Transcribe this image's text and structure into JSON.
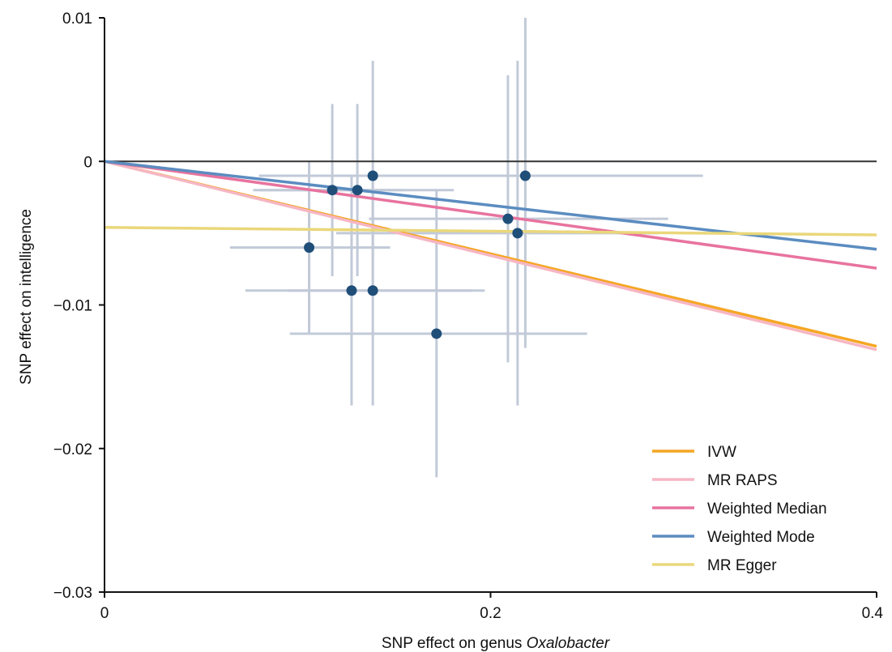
{
  "chart_data": {
    "type": "scatter",
    "xlabel": "SNP effect on genus ",
    "xlabel_italic": "Oxalobacter",
    "ylabel": "SNP effect on intelligence",
    "xlim": [
      0,
      0.4
    ],
    "ylim": [
      -0.03,
      0.01
    ],
    "x_ticks": [
      0,
      0.2,
      0.4
    ],
    "x_tick_labels": [
      "0",
      "0.2",
      "0.4"
    ],
    "y_ticks": [
      0.01,
      0,
      -0.01,
      -0.02,
      -0.03
    ],
    "y_tick_labels": [
      "0.01",
      "0",
      "−0.01",
      "−0.02",
      "−0.03"
    ],
    "grid": false,
    "legend_position": "bottom-right",
    "colors": {
      "points": "#1f4e79",
      "error_bars": "#c2cad8",
      "zero_line": "#333333",
      "axes": "#111111"
    },
    "points": [
      {
        "x": 0.106,
        "y": -0.006,
        "x_lo": 0.065,
        "x_hi": 0.148,
        "y_lo": -0.012,
        "y_hi": 0.0
      },
      {
        "x": 0.118,
        "y": -0.002,
        "x_lo": 0.08,
        "x_hi": 0.155,
        "y_lo": -0.008,
        "y_hi": 0.004
      },
      {
        "x": 0.128,
        "y": -0.009,
        "x_lo": 0.073,
        "x_hi": 0.197,
        "y_lo": -0.017,
        "y_hi": -0.001
      },
      {
        "x": 0.131,
        "y": -0.002,
        "x_lo": 0.077,
        "x_hi": 0.181,
        "y_lo": -0.008,
        "y_hi": 0.004
      },
      {
        "x": 0.139,
        "y": -0.001,
        "x_lo": 0.08,
        "x_hi": 0.207,
        "y_lo": -0.009,
        "y_hi": 0.007
      },
      {
        "x": 0.139,
        "y": -0.009,
        "x_lo": 0.095,
        "x_hi": 0.19,
        "y_lo": -0.017,
        "y_hi": -0.001
      },
      {
        "x": 0.172,
        "y": -0.012,
        "x_lo": 0.096,
        "x_hi": 0.25,
        "y_lo": -0.022,
        "y_hi": -0.002
      },
      {
        "x": 0.209,
        "y": -0.004,
        "x_lo": 0.137,
        "x_hi": 0.292,
        "y_lo": -0.014,
        "y_hi": 0.006
      },
      {
        "x": 0.214,
        "y": -0.005,
        "x_lo": 0.12,
        "x_hi": 0.287,
        "y_lo": -0.017,
        "y_hi": 0.007
      },
      {
        "x": 0.218,
        "y": -0.001,
        "x_lo": 0.12,
        "x_hi": 0.31,
        "y_lo": -0.013,
        "y_hi": 0.01
      }
    ],
    "series": [
      {
        "name": "IVW",
        "color": "#f5a623",
        "intercept": 0.0,
        "slope": -0.0322
      },
      {
        "name": "MR RAPS",
        "color": "#f6b6c4",
        "intercept": 0.0,
        "slope": -0.0328
      },
      {
        "name": "Weighted Median",
        "color": "#e8739e",
        "intercept": 0.0,
        "slope": -0.0186
      },
      {
        "name": "Weighted Mode",
        "color": "#5b8cc0",
        "intercept": 0.0,
        "slope": -0.0153
      },
      {
        "name": "MR Egger",
        "color": "#ead77a",
        "intercept": -0.0046,
        "slope": -0.0013
      }
    ]
  }
}
